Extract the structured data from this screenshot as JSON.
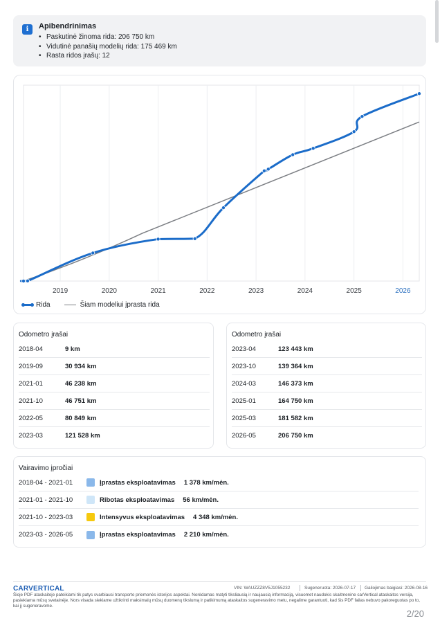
{
  "summary": {
    "title": "Apibendrinimas",
    "items": [
      "Paskutinė žinoma rida: 206 750 km",
      "Vidutinė panašių modelių rida: 175 469 km",
      "Rasta ridos įrašų: 12"
    ]
  },
  "chart_data": {
    "type": "line",
    "x_ticks": [
      "2019",
      "2020",
      "2021",
      "2022",
      "2023",
      "2024",
      "2025",
      "2026"
    ],
    "highlight_tick": "2026",
    "legend": [
      "Rida",
      "Šiam modeliui įprasta rida"
    ],
    "legend_position": "bottom-left",
    "grid": true,
    "ylim": [
      0,
      210000
    ],
    "series": [
      {
        "name": "Rida",
        "color": "#1b6cc9",
        "points": [
          {
            "x": "2018-04",
            "y": 9
          },
          {
            "x": "2018-05",
            "y": 120
          },
          {
            "x": "2019-09",
            "y": 30934
          },
          {
            "x": "2021-01",
            "y": 46238
          },
          {
            "x": "2021-10",
            "y": 46751
          },
          {
            "x": "2022-05",
            "y": 80849
          },
          {
            "x": "2023-03",
            "y": 121528
          },
          {
            "x": "2023-04",
            "y": 123443
          },
          {
            "x": "2023-10",
            "y": 139364
          },
          {
            "x": "2024-03",
            "y": 146373
          },
          {
            "x": "2025-01",
            "y": 164750
          },
          {
            "x": "2025-03",
            "y": 181582
          },
          {
            "x": "2026-05",
            "y": 206750
          }
        ]
      },
      {
        "name": "Šiam modeliui įprasta rida",
        "color": "#7c7f84",
        "points": [
          {
            "x": "2018-04",
            "y": 0
          },
          {
            "x": "2026-05",
            "y": 175469
          }
        ]
      }
    ]
  },
  "odometer_left": {
    "title": "Odometro įrašai",
    "rows": [
      {
        "date": "2018-04",
        "value": "9 km"
      },
      {
        "date": "2019-09",
        "value": "30 934 km"
      },
      {
        "date": "2021-01",
        "value": "46 238 km"
      },
      {
        "date": "2021-10",
        "value": "46 751 km"
      },
      {
        "date": "2022-05",
        "value": "80 849 km"
      },
      {
        "date": "2023-03",
        "value": "121 528 km"
      }
    ]
  },
  "odometer_right": {
    "title": "Odometro įrašai",
    "rows": [
      {
        "date": "2023-04",
        "value": "123 443 km"
      },
      {
        "date": "2023-10",
        "value": "139 364 km"
      },
      {
        "date": "2024-03",
        "value": "146 373 km"
      },
      {
        "date": "2025-01",
        "value": "164 750 km"
      },
      {
        "date": "2025-03",
        "value": "181 582 km"
      },
      {
        "date": "2026-05",
        "value": "206 750 km"
      }
    ]
  },
  "driving": {
    "title": "Vairavimo įpročiai",
    "rows": [
      {
        "period": "2018-04 - 2021-01",
        "color": "#8ab8ea",
        "label": "Įprastas eksploatavimas",
        "rate": "1 378 km/mėn."
      },
      {
        "period": "2021-01 - 2021-10",
        "color": "#cfe6f8",
        "label": "Ribotas eksploatavimas",
        "rate": "56 km/mėn."
      },
      {
        "period": "2021-10 - 2023-03",
        "color": "#f6c90e",
        "label": "Intensyvus eksploatavimas",
        "rate": "4 348 km/mėn."
      },
      {
        "period": "2023-03 - 2026-05",
        "color": "#8ab8ea",
        "label": "Įprastas eksploatavimas",
        "rate": "2 210 km/mėn."
      }
    ]
  },
  "footer": {
    "brand": "CARVERTICAL",
    "vin": "VIN: WAUZZZ8V5J1055232",
    "generated": "Sugeneruota: 2026-07-17",
    "valid": "Galiojimas baigiasi: 2026-08-16",
    "disclaimer": "Šioje PDF ataskaitoje pateikiami tik patys svarbiausi transporto priemonės istorijos aspektai. Norėdamas matyti tiksliausią ir naujausią informaciją, visuomet naudokis skaitmenine carVertical ataskaitos versija, pasiekiama mūsų svetainėje. Nors visada siekiame užtikrinti maksimalų mūsų duomenų tikslumą ir patikimumą ataskaitos sugeneravimo metu, negalime garantuoti, kad šis PDF failas nebuvo pakoreguotas po to, kai jį sugeneravome.",
    "page": "2/20"
  }
}
